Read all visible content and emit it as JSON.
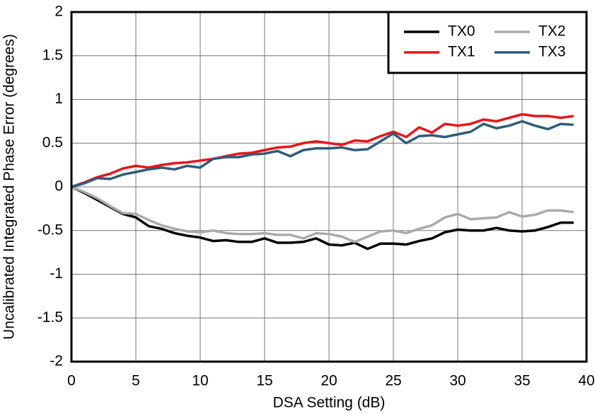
{
  "chart_data": {
    "type": "line",
    "x_label": "DSA Setting (dB)",
    "y_label": "Uncalibrated Integrated Phase Error (degrees)",
    "x": [
      0,
      1,
      2,
      3,
      4,
      5,
      6,
      7,
      8,
      9,
      10,
      11,
      12,
      13,
      14,
      15,
      16,
      17,
      18,
      19,
      20,
      21,
      22,
      23,
      24,
      25,
      26,
      27,
      28,
      29,
      30,
      31,
      32,
      33,
      34,
      35,
      36,
      37,
      38,
      39
    ],
    "series": [
      {
        "name": "TX0",
        "color": "#000000",
        "values": [
          0,
          -0.07,
          -0.15,
          -0.23,
          -0.31,
          -0.35,
          -0.45,
          -0.48,
          -0.53,
          -0.56,
          -0.58,
          -0.62,
          -0.61,
          -0.63,
          -0.63,
          -0.59,
          -0.64,
          -0.64,
          -0.63,
          -0.59,
          -0.66,
          -0.67,
          -0.64,
          -0.71,
          -0.65,
          -0.65,
          -0.66,
          -0.62,
          -0.59,
          -0.52,
          -0.49,
          -0.5,
          -0.5,
          -0.47,
          -0.5,
          -0.51,
          -0.5,
          -0.46,
          -0.41,
          -0.41
        ]
      },
      {
        "name": "TX1",
        "color": "#e8141b",
        "values": [
          0,
          0.05,
          0.11,
          0.15,
          0.21,
          0.24,
          0.22,
          0.25,
          0.27,
          0.28,
          0.3,
          0.32,
          0.35,
          0.38,
          0.39,
          0.42,
          0.45,
          0.46,
          0.5,
          0.52,
          0.5,
          0.48,
          0.53,
          0.52,
          0.58,
          0.63,
          0.57,
          0.68,
          0.62,
          0.72,
          0.7,
          0.72,
          0.77,
          0.75,
          0.79,
          0.83,
          0.81,
          0.81,
          0.79,
          0.81
        ]
      },
      {
        "name": "TX2",
        "color": "#aaaaaa",
        "values": [
          0,
          -0.06,
          -0.13,
          -0.22,
          -0.3,
          -0.31,
          -0.38,
          -0.44,
          -0.48,
          -0.51,
          -0.52,
          -0.5,
          -0.53,
          -0.54,
          -0.54,
          -0.53,
          -0.55,
          -0.55,
          -0.59,
          -0.53,
          -0.54,
          -0.57,
          -0.63,
          -0.57,
          -0.51,
          -0.5,
          -0.53,
          -0.48,
          -0.44,
          -0.35,
          -0.31,
          -0.37,
          -0.36,
          -0.35,
          -0.29,
          -0.34,
          -0.32,
          -0.27,
          -0.27,
          -0.29
        ]
      },
      {
        "name": "TX3",
        "color": "#2f5c78",
        "values": [
          0,
          0.04,
          0.1,
          0.09,
          0.14,
          0.17,
          0.2,
          0.22,
          0.2,
          0.24,
          0.22,
          0.32,
          0.34,
          0.34,
          0.37,
          0.38,
          0.41,
          0.35,
          0.42,
          0.44,
          0.44,
          0.45,
          0.42,
          0.43,
          0.52,
          0.61,
          0.5,
          0.58,
          0.59,
          0.57,
          0.6,
          0.63,
          0.72,
          0.67,
          0.7,
          0.75,
          0.7,
          0.66,
          0.72,
          0.71
        ]
      }
    ],
    "xlim": [
      0,
      40
    ],
    "xticks": [
      0,
      5,
      10,
      15,
      20,
      25,
      30,
      35,
      40
    ],
    "ylim": [
      -2,
      2
    ],
    "yticks": [
      -2,
      -1.5,
      -1,
      -0.5,
      0,
      0.5,
      1,
      1.5,
      2
    ],
    "grid": true,
    "legend": "top right"
  }
}
